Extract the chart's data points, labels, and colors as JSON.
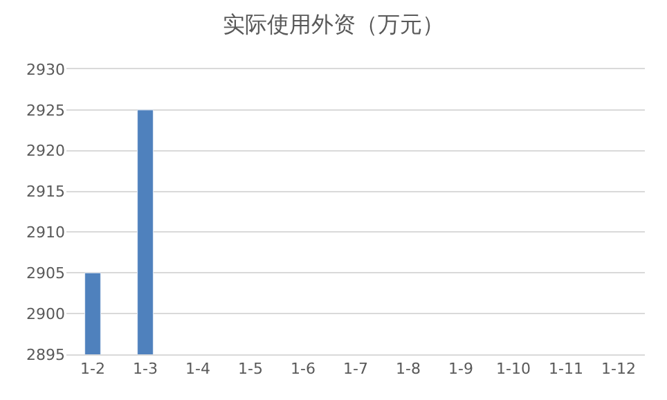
{
  "chart_data": {
    "type": "bar",
    "title": "实际使用外资（万元）",
    "categories": [
      "1-2",
      "1-3",
      "1-4",
      "1-5",
      "1-6",
      "1-7",
      "1-8",
      "1-9",
      "1-10",
      "1-11",
      "1-12"
    ],
    "values": [
      2905,
      2925,
      null,
      null,
      null,
      null,
      null,
      null,
      null,
      null,
      null
    ],
    "color": "#4f81bd",
    "ylim": [
      2895,
      2930
    ],
    "yticks": [
      2895,
      2900,
      2905,
      2910,
      2915,
      2920,
      2925,
      2930
    ],
    "grid": "y"
  }
}
